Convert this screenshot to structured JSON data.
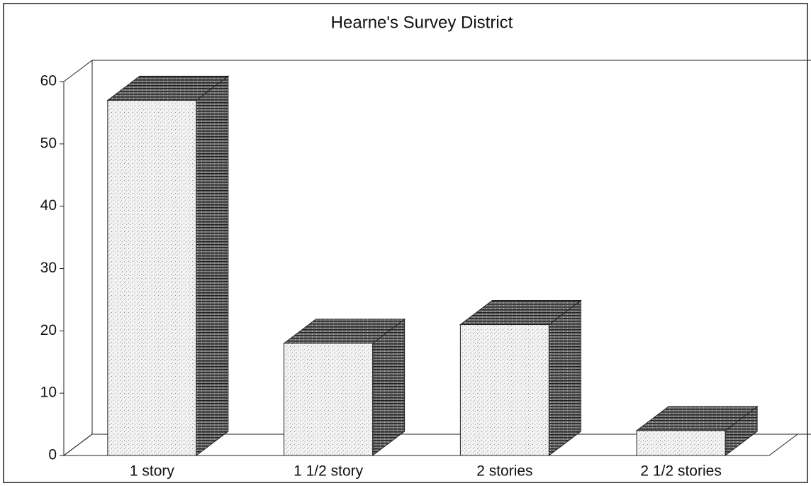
{
  "chart_data": {
    "type": "bar3d",
    "title": "Hearne's Survey District",
    "categories": [
      "1 story",
      "1 1/2 story",
      "2 stories",
      "2 1/2 stories"
    ],
    "values": [
      57,
      18,
      21,
      4
    ],
    "ylim": [
      0,
      60
    ],
    "yticks": [
      0,
      10,
      20,
      30,
      40,
      50,
      60
    ],
    "grid": false
  }
}
